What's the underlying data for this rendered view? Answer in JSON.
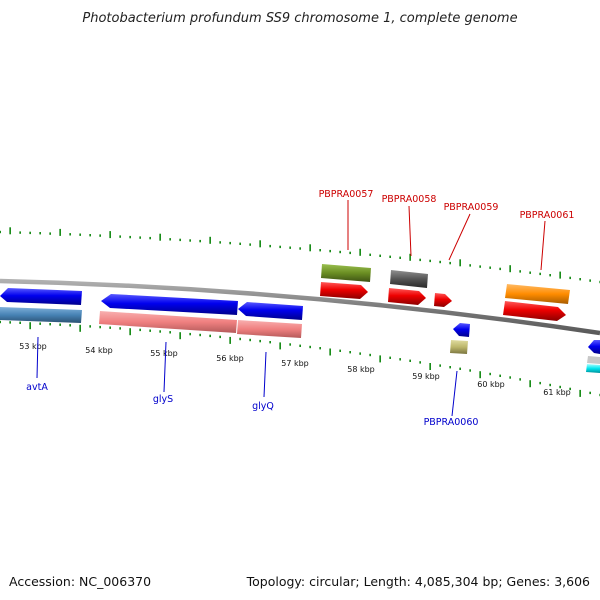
{
  "title": "Photobacterium profundum SS9 chromosome 1, complete genome",
  "footer": {
    "accession": "Accession: NC_006370",
    "summary": "Topology: circular; Length: 4,085,304 bp; Genes: 3,606"
  },
  "ruler": {
    "tick_labels": [
      "53 kbp",
      "54 kbp",
      "55 kbp",
      "56 kbp",
      "57 kbp",
      "58 kbp",
      "59 kbp",
      "60 kbp",
      "61 kbp"
    ]
  },
  "genes": {
    "top": [
      {
        "label": "PBPRA0057",
        "color": "#cc0000"
      },
      {
        "label": "PBPRA0058",
        "color": "#cc0000"
      },
      {
        "label": "PBPRA0059",
        "color": "#cc0000"
      },
      {
        "label": "PBPRA0061",
        "color": "#cc0000"
      }
    ],
    "bottom": [
      {
        "label": "avtA",
        "color": "#0000cc"
      },
      {
        "label": "glyS",
        "color": "#0000cc"
      },
      {
        "label": "glyQ",
        "color": "#0000cc"
      },
      {
        "label": "PBPRA0060",
        "color": "#0000cc"
      }
    ]
  },
  "colors": {
    "cds_forward": "#ee0000",
    "cds_reverse": "#0000ee",
    "rna": "#6b8e23",
    "steelblue": "#4682b4",
    "salmon": "#f08080",
    "orange": "#ff8c00",
    "gray": "#555555",
    "khaki": "#bdb76b",
    "cyan": "#00e5ee",
    "backbone": "#8a8a8a",
    "ticks": "#008000"
  }
}
